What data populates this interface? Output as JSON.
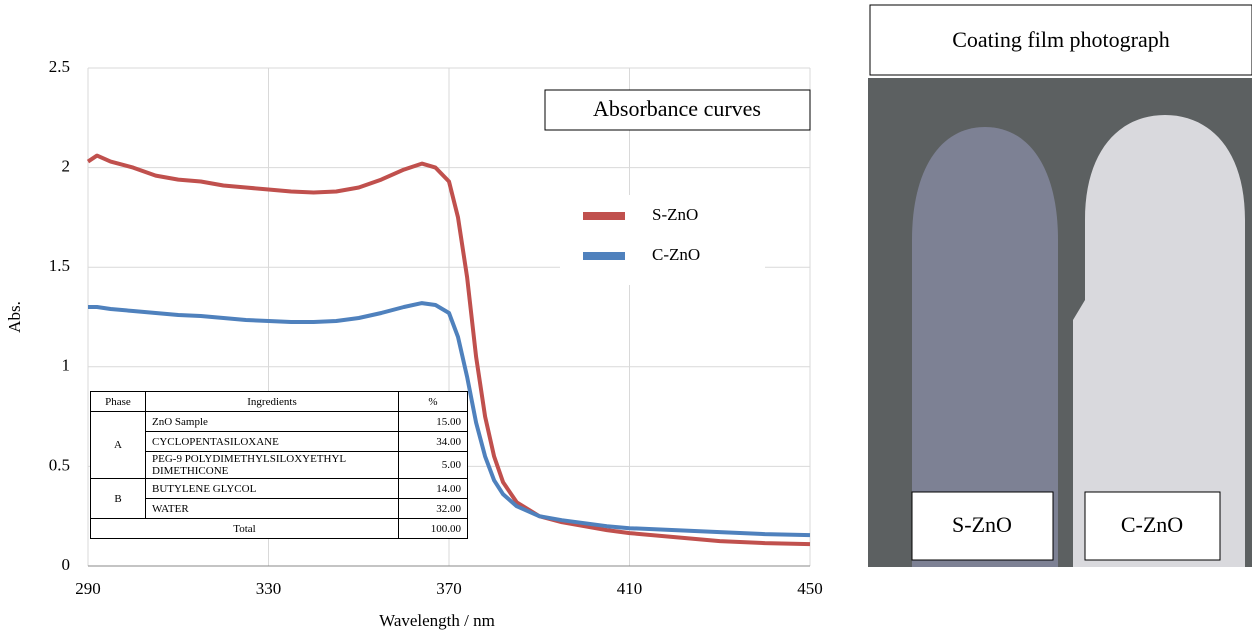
{
  "chart_data": {
    "type": "line",
    "title": "Absorbance curves",
    "x_label": "Wavelength / nm",
    "y_label": "Abs.",
    "x": [
      290,
      292,
      295,
      300,
      305,
      310,
      315,
      320,
      325,
      330,
      335,
      340,
      345,
      350,
      355,
      360,
      364,
      367,
      370,
      372,
      374,
      376,
      378,
      380,
      382,
      385,
      390,
      395,
      400,
      405,
      410,
      420,
      430,
      440,
      450
    ],
    "series": [
      {
        "name": "S-ZnO",
        "color": "#c0504d",
        "values": [
          2.03,
          2.06,
          2.03,
          2.0,
          1.96,
          1.94,
          1.93,
          1.91,
          1.9,
          1.89,
          1.88,
          1.875,
          1.88,
          1.9,
          1.94,
          1.99,
          2.02,
          2.0,
          1.93,
          1.75,
          1.45,
          1.05,
          0.75,
          0.55,
          0.42,
          0.32,
          0.25,
          0.22,
          0.2,
          0.18,
          0.165,
          0.145,
          0.125,
          0.115,
          0.11
        ]
      },
      {
        "name": "C-ZnO",
        "color": "#4f81bd",
        "values": [
          1.3,
          1.3,
          1.29,
          1.28,
          1.27,
          1.26,
          1.255,
          1.245,
          1.235,
          1.23,
          1.225,
          1.225,
          1.23,
          1.245,
          1.27,
          1.3,
          1.32,
          1.31,
          1.27,
          1.15,
          0.95,
          0.72,
          0.55,
          0.43,
          0.36,
          0.3,
          0.25,
          0.23,
          0.215,
          0.2,
          0.19,
          0.18,
          0.17,
          0.16,
          0.155
        ]
      }
    ],
    "xlim": [
      290,
      450
    ],
    "xticks": [
      290,
      330,
      370,
      410,
      450
    ],
    "ylim": [
      0,
      2.5
    ],
    "yticks": [
      0,
      0.5,
      1,
      1.5,
      2,
      2.5
    ],
    "grid": true,
    "legend": "right"
  },
  "table": {
    "header": [
      "Phase",
      "Ingredients",
      "%"
    ],
    "groups": [
      {
        "phase": "A",
        "items": [
          {
            "name": "ZnO Sample",
            "pct": "15.00"
          },
          {
            "name": "CYCLOPENTASILOXANE",
            "pct": "34.00"
          },
          {
            "name": "PEG-9 POLYDIMETHYLSILOXYETHYL DIMETHICONE",
            "pct": "5.00"
          }
        ]
      },
      {
        "phase": "B",
        "items": [
          {
            "name": "BUTYLENE GLYCOL",
            "pct": "14.00"
          },
          {
            "name": "WATER",
            "pct": "32.00"
          }
        ]
      }
    ],
    "total": {
      "label": "Total",
      "pct": "100.00"
    }
  },
  "photo": {
    "title": "Coating film photograph",
    "labels": [
      "S-ZnO",
      "C-ZnO"
    ]
  }
}
